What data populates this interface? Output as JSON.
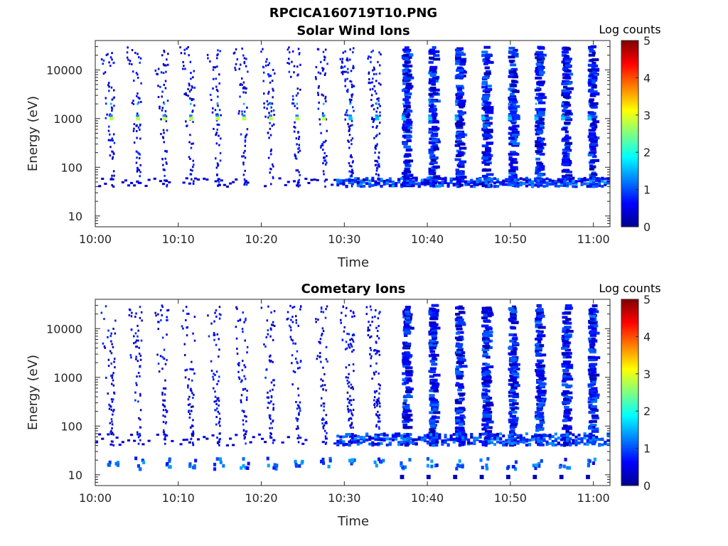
{
  "figure": {
    "title": "RPCICA160719T10.PNG"
  },
  "chart_data": [
    {
      "type": "heatmap",
      "title": "Solar Wind Ions",
      "xlabel": "Time",
      "ylabel": "Energy (eV)",
      "x_ticks": [
        "10:00",
        "10:10",
        "10:20",
        "10:30",
        "10:40",
        "10:50",
        "11:00"
      ],
      "x_tick_minutes": [
        0,
        10,
        20,
        30,
        40,
        50,
        60
      ],
      "xlim_minutes": [
        0,
        62
      ],
      "y_scale": "log",
      "y_ticks": [
        "10",
        "100",
        "1000",
        "10000"
      ],
      "y_tick_values": [
        10,
        100,
        1000,
        10000
      ],
      "ylim": [
        6,
        40000
      ],
      "colorbar": {
        "label": "Log counts",
        "ticks": [
          "0",
          "1",
          "2",
          "3",
          "4",
          "5"
        ],
        "range": [
          0,
          5
        ],
        "colormap": "jet"
      },
      "sweep_starts_minutes": [
        2.0,
        5.2,
        8.4,
        11.6,
        14.8,
        18.0,
        21.2,
        24.4,
        27.6,
        30.8,
        34.0,
        37.2,
        40.4,
        43.6,
        46.8,
        50.0,
        53.2,
        56.4,
        59.6
      ],
      "peak_energy_eV": 1000,
      "peak_log_counts": 2.8,
      "background_band_eV": [
        40,
        60
      ]
    },
    {
      "type": "heatmap",
      "title": "Cometary Ions",
      "xlabel": "Time",
      "ylabel": "Energy (eV)",
      "x_ticks": [
        "10:00",
        "10:10",
        "10:20",
        "10:30",
        "10:40",
        "10:50",
        "11:00"
      ],
      "x_tick_minutes": [
        0,
        10,
        20,
        30,
        40,
        50,
        60
      ],
      "xlim_minutes": [
        0,
        62
      ],
      "y_scale": "log",
      "y_ticks": [
        "10",
        "100",
        "1000",
        "10000"
      ],
      "y_tick_values": [
        10,
        100,
        1000,
        10000
      ],
      "ylim": [
        6,
        40000
      ],
      "colorbar": {
        "label": "Log counts",
        "ticks": [
          "0",
          "1",
          "2",
          "3",
          "4",
          "5"
        ],
        "range": [
          0,
          5
        ],
        "colormap": "jet"
      },
      "sweep_starts_minutes": [
        2.0,
        5.2,
        8.4,
        11.6,
        14.8,
        18.0,
        21.2,
        24.4,
        27.6,
        30.8,
        34.0,
        37.2,
        40.4,
        43.6,
        46.8,
        50.0,
        53.2,
        56.4,
        59.6
      ],
      "low_energy_blob_eV": [
        13,
        22
      ],
      "background_band_eV": [
        40,
        70
      ]
    }
  ]
}
